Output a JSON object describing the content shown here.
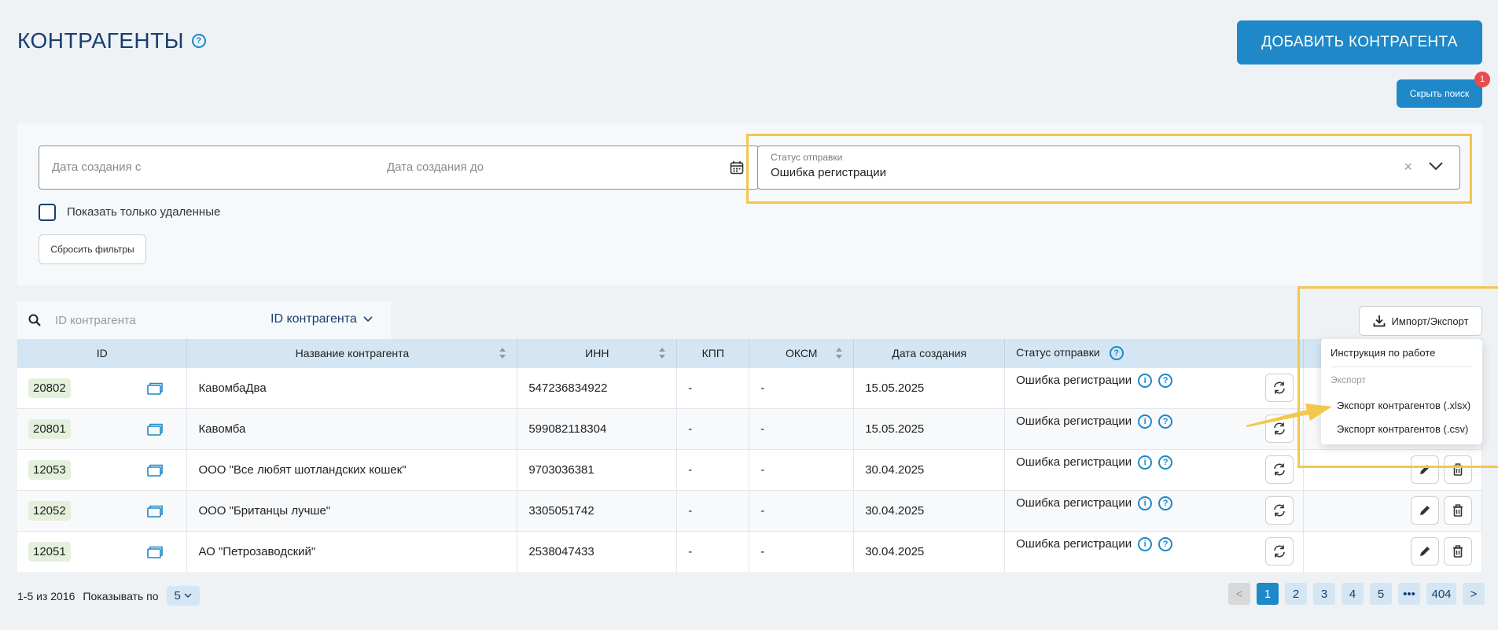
{
  "header": {
    "title": "КОНТРАГЕНТЫ",
    "help_glyph": "?",
    "add_button": "ДОБАВИТЬ КОНТРАГЕНТА",
    "hide_search_button": "Скрыть поиск",
    "badge_count": "1"
  },
  "filters": {
    "date_from_placeholder": "Дата создания с",
    "date_to_placeholder": "Дата создания до",
    "status_label": "Статус отправки",
    "status_value": "Ошибка регистрации",
    "clear_glyph": "×",
    "deleted_only_label": "Показать только удаленные",
    "reset_button": "Сбросить фильтры"
  },
  "search": {
    "placeholder": "ID контрагента",
    "field_select": "ID контрагента"
  },
  "export": {
    "button": "Импорт/Экспорт",
    "menu": {
      "instruction": "Инструкция по работе",
      "section": "Экспорт",
      "xlsx": "Экспорт контрагентов (.xlsx)",
      "csv": "Экспорт контрагентов (.csv)"
    }
  },
  "table": {
    "columns": [
      "ID",
      "Название контрагента",
      "ИНН",
      "КПП",
      "ОКСМ",
      "Дата создания",
      "Статус отправки"
    ],
    "rows": [
      {
        "id": "20802",
        "name": "КавомбаДва",
        "inn": "547236834922",
        "kpp": "-",
        "oksm": "-",
        "date": "15.05.2025",
        "status": "Ошибка регистрации"
      },
      {
        "id": "20801",
        "name": "Кавомба",
        "inn": "599082118304",
        "kpp": "-",
        "oksm": "-",
        "date": "15.05.2025",
        "status": "Ошибка регистрации"
      },
      {
        "id": "12053",
        "name": "ООО \"Все любят шотландских кошек\"",
        "inn": "9703036381",
        "kpp": "-",
        "oksm": "-",
        "date": "30.04.2025",
        "status": "Ошибка регистрации"
      },
      {
        "id": "12052",
        "name": "ООО \"Британцы лучше\"",
        "inn": "3305051742",
        "kpp": "-",
        "oksm": "-",
        "date": "30.04.2025",
        "status": "Ошибка регистрации"
      },
      {
        "id": "12051",
        "name": "АО \"Петрозаводский\"",
        "inn": "2538047433",
        "kpp": "-",
        "oksm": "-",
        "date": "30.04.2025",
        "status": "Ошибка регистрации"
      }
    ]
  },
  "pagination": {
    "range": "1-5 из 2016",
    "per_page_label": "Показывать по",
    "per_page_value": "5",
    "pages": [
      "1",
      "2",
      "3",
      "4",
      "5",
      "•••",
      "404"
    ],
    "prev": "<",
    "next": ">"
  },
  "colors": {
    "accent": "#1e88c8",
    "highlight": "#f3c74a",
    "title": "#1a3e6e"
  }
}
